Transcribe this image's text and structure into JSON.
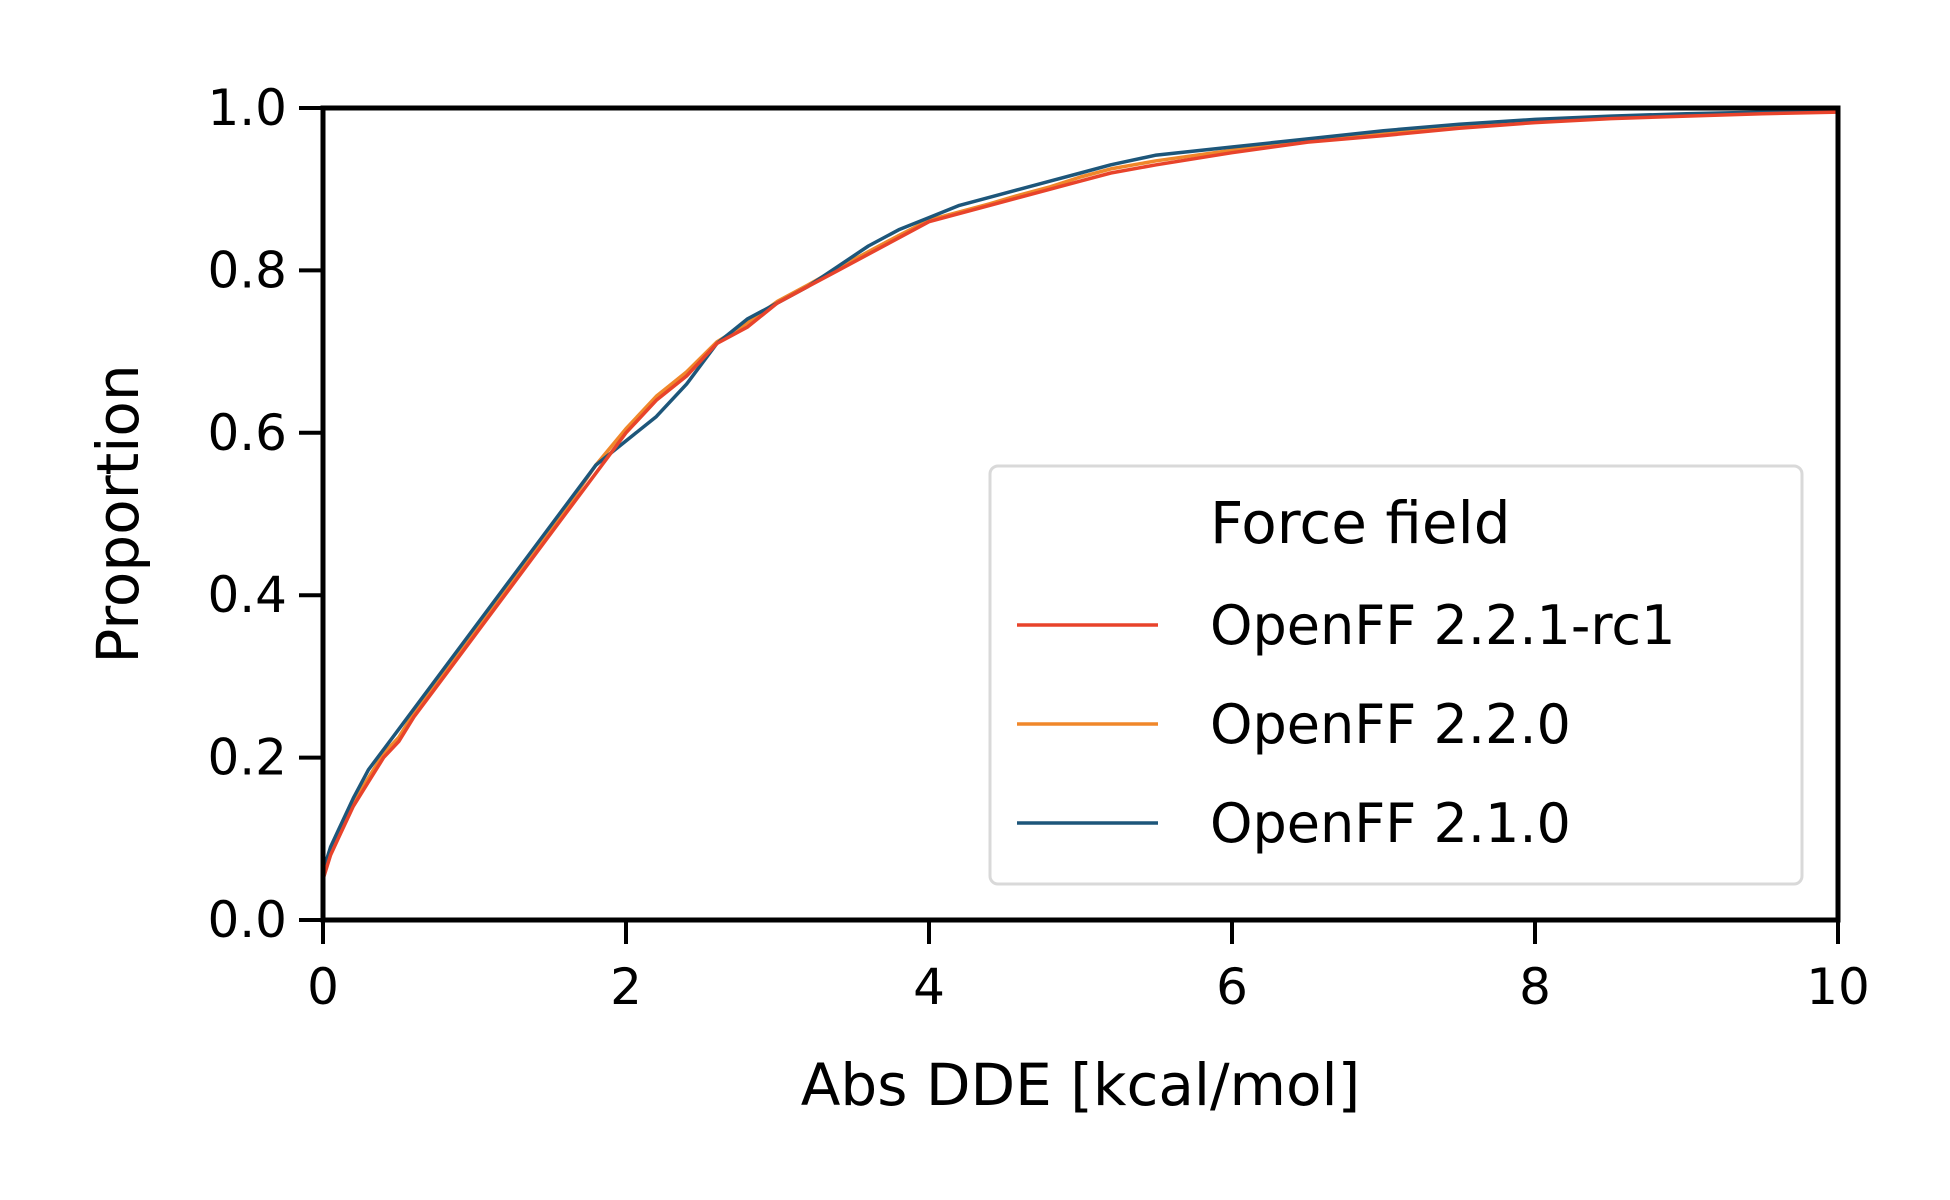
{
  "chart_data": {
    "type": "line",
    "title": "",
    "xlabel": "Abs DDE [kcal/mol]",
    "ylabel": "Proportion",
    "xlim": [
      0,
      10
    ],
    "ylim": [
      0,
      1
    ],
    "xticks": [
      0,
      2,
      4,
      6,
      8,
      10
    ],
    "yticks": [
      0.0,
      0.2,
      0.4,
      0.6,
      0.8,
      1.0
    ],
    "xtick_labels": [
      "0",
      "2",
      "4",
      "6",
      "8",
      "10"
    ],
    "ytick_labels": [
      "0.0",
      "0.2",
      "0.4",
      "0.6",
      "0.8",
      "1.0"
    ],
    "grid": false,
    "legend": {
      "title": "Force field",
      "position": "lower-right"
    },
    "series": [
      {
        "name": "OpenFF 2.2.1-rc1",
        "color": "#e8432b",
        "x": [
          0,
          0.05,
          0.1,
          0.2,
          0.3,
          0.4,
          0.5,
          0.6,
          0.8,
          1.0,
          1.2,
          1.4,
          1.6,
          1.8,
          2.0,
          2.2,
          2.4,
          2.6,
          2.8,
          3.0,
          3.2,
          3.4,
          3.6,
          3.8,
          4.0,
          4.2,
          4.4,
          4.6,
          4.8,
          5.0,
          5.2,
          5.5,
          6.0,
          6.5,
          7.0,
          7.5,
          8.0,
          8.5,
          9.0,
          9.5,
          10.0
        ],
        "y": [
          0.05,
          0.08,
          0.1,
          0.14,
          0.17,
          0.2,
          0.22,
          0.25,
          0.3,
          0.35,
          0.4,
          0.45,
          0.5,
          0.55,
          0.6,
          0.64,
          0.67,
          0.71,
          0.73,
          0.76,
          0.78,
          0.8,
          0.82,
          0.84,
          0.86,
          0.87,
          0.88,
          0.89,
          0.9,
          0.91,
          0.92,
          0.93,
          0.945,
          0.958,
          0.966,
          0.975,
          0.982,
          0.987,
          0.99,
          0.993,
          0.995
        ]
      },
      {
        "name": "OpenFF 2.2.0",
        "color": "#f0872a",
        "x": [
          0,
          0.05,
          0.1,
          0.2,
          0.3,
          0.4,
          0.5,
          0.6,
          0.8,
          1.0,
          1.2,
          1.4,
          1.6,
          1.8,
          2.0,
          2.2,
          2.4,
          2.6,
          2.8,
          3.0,
          3.2,
          3.4,
          3.6,
          3.8,
          4.0,
          4.2,
          4.4,
          4.6,
          4.8,
          5.0,
          5.2,
          5.5,
          6.0,
          6.5,
          7.0,
          7.5,
          8.0,
          8.5,
          9.0,
          9.5,
          10.0
        ],
        "y": [
          0.055,
          0.085,
          0.105,
          0.145,
          0.175,
          0.205,
          0.225,
          0.255,
          0.305,
          0.355,
          0.405,
          0.455,
          0.505,
          0.56,
          0.605,
          0.645,
          0.675,
          0.712,
          0.735,
          0.762,
          0.782,
          0.803,
          0.823,
          0.843,
          0.862,
          0.872,
          0.882,
          0.893,
          0.903,
          0.915,
          0.925,
          0.935,
          0.948,
          0.96,
          0.968,
          0.977,
          0.984,
          0.988,
          0.991,
          0.994,
          0.996
        ]
      },
      {
        "name": "OpenFF 2.1.0",
        "color": "#1d567a",
        "x": [
          0,
          0.05,
          0.1,
          0.2,
          0.3,
          0.4,
          0.5,
          0.6,
          0.8,
          1.0,
          1.2,
          1.4,
          1.6,
          1.8,
          2.0,
          2.2,
          2.4,
          2.6,
          2.8,
          3.0,
          3.2,
          3.4,
          3.6,
          3.8,
          4.0,
          4.2,
          4.4,
          4.6,
          4.8,
          5.0,
          5.2,
          5.5,
          6.0,
          6.5,
          7.0,
          7.5,
          8.0,
          8.5,
          9.0,
          9.5,
          10.0
        ],
        "y": [
          0.06,
          0.09,
          0.11,
          0.15,
          0.185,
          0.21,
          0.235,
          0.26,
          0.31,
          0.36,
          0.41,
          0.46,
          0.51,
          0.56,
          0.59,
          0.62,
          0.66,
          0.71,
          0.74,
          0.76,
          0.78,
          0.805,
          0.83,
          0.85,
          0.865,
          0.88,
          0.89,
          0.9,
          0.91,
          0.92,
          0.93,
          0.942,
          0.952,
          0.962,
          0.972,
          0.98,
          0.986,
          0.99,
          0.993,
          0.995,
          0.997
        ]
      }
    ]
  }
}
